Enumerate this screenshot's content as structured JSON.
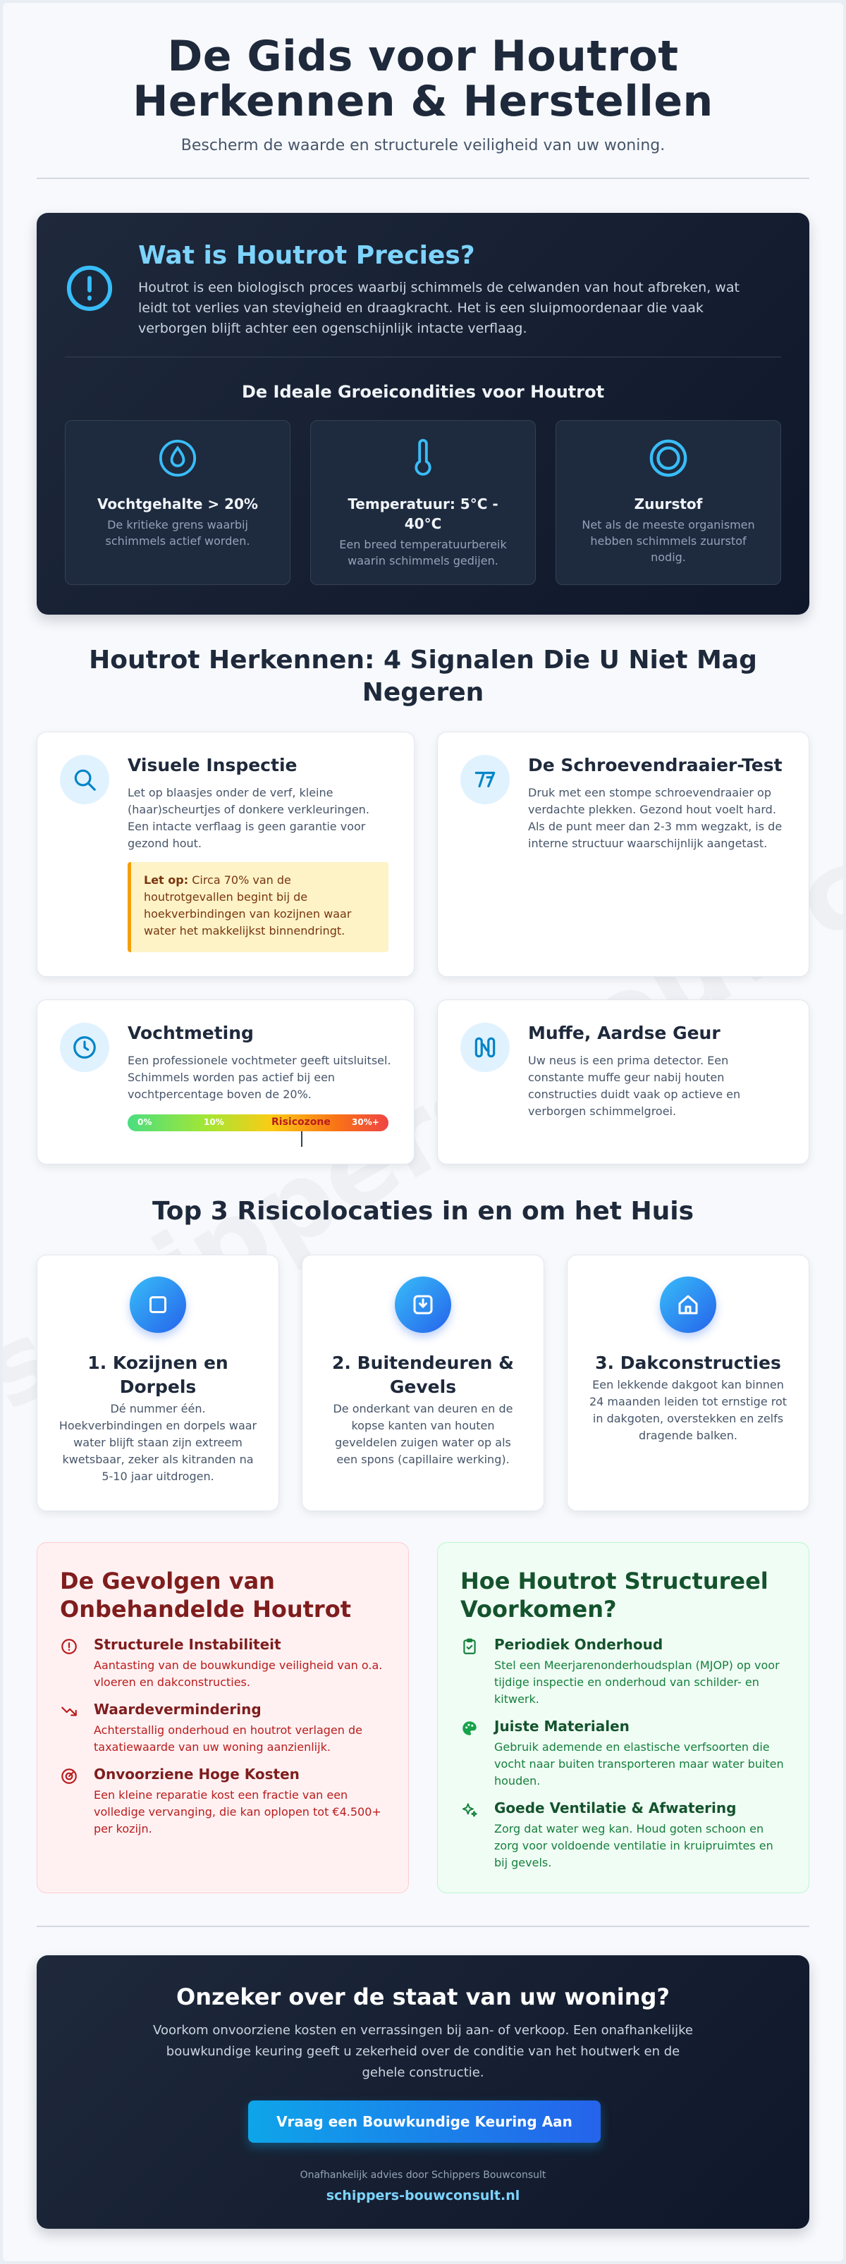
{
  "header": {
    "title_line1": "De Gids voor Houtrot",
    "title_line2": "Herkennen & Herstellen",
    "subtitle": "Bescherm de waarde en structurele veiligheid van uw woning."
  },
  "watermark": "schippers-bouwconsult",
  "intro": {
    "title": "Wat is Houtrot Precies?",
    "description": "Houtrot is een biologisch proces waarbij schimmels de celwanden van hout afbreken, wat leidt tot verlies van stevigheid en draagkracht. Het is een sluipmoordenaar die vaak verborgen blijft achter een ogenschijnlijk intacte verflaag.",
    "conditions_title": "De Ideale Groeicondities voor Houtrot",
    "conditions": [
      {
        "title": "Vochtgehalte > 20%",
        "desc": "De kritieke grens waarbij schimmels actief worden.",
        "icon": "water-drop-icon"
      },
      {
        "title": "Temperatuur: 5°C - 40°C",
        "desc": "Een breed temperatuurbereik waarin schimmels gedijen.",
        "icon": "thermometer-icon"
      },
      {
        "title": "Zuurstof",
        "desc": "Net als de meeste organismen hebben schimmels zuurstof nodig.",
        "icon": "oxygen-ring-icon"
      }
    ]
  },
  "signals": {
    "title_line1": "Houtrot Herkennen: 4 Signalen Die U Niet Mag",
    "title_line2": "Negeren",
    "items": [
      {
        "title": "Visuele Inspectie",
        "text": "Let op blaasjes onder de verf, kleine (haar)scheurtjes of donkere verkleuringen. Een intacte verflaag is geen garantie voor gezond hout.",
        "icon": "search-icon"
      },
      {
        "title": "De Schroevendraaier-Test",
        "text": "Druk met een stompe schroevendraaier op verdachte plekken. Gezond hout voelt hard. Als de punt meer dan 2-3 mm wegzakt, is de interne structuur waarschijnlijk aangetast.",
        "icon": "screwdriver-icon"
      },
      {
        "title": "Vochtmeting",
        "text": "Een professionele vochtmeter geeft uitsluitsel. Schimmels worden pas actief bij een vochtpercentage boven de 20%.",
        "icon": "clock-icon"
      },
      {
        "title": "Muffe, Aardse Geur",
        "text": "Uw neus is een prima detector. Een constante muffe geur nabij houten constructies duidt vaak op actieve en verborgen schimmelgroei.",
        "icon": "nose-icon"
      }
    ],
    "note_label": "Let op:",
    "note_text": " Circa 70% van de houtrotgevallen begint bij de hoekverbindingen van kozijnen waar water het makkelijkst binnendringt.",
    "meter": {
      "label_0": "0%",
      "label_10": "10%",
      "zone": "Risicozone",
      "label_30": "30%+",
      "indicator_value": 20
    }
  },
  "risks": {
    "title": "Top 3 Risicolocaties in en om het Huis",
    "items": [
      {
        "title": "1. Kozijnen en Dorpels",
        "text": "Dé nummer één. Hoekverbindingen en dorpels waar water blijft staan zijn extreem kwetsbaar, zeker als kitranden na 5-10 jaar uitdrogen.",
        "icon": "window-frame-icon"
      },
      {
        "title": "2. Buitendeuren & Gevels",
        "text": "De onderkant van deuren en de kopse kanten van houten geveldelen zuigen water op als een spons (capillaire werking).",
        "icon": "door-download-icon"
      },
      {
        "title": "3. Dakconstructies",
        "text": "Een lekkende dakgoot kan binnen 24 maanden leiden tot ernstige rot in dakgoten, overstekken en zelfs dragende balken.",
        "icon": "house-icon"
      }
    ]
  },
  "consequences": {
    "title_line1": "De Gevolgen van",
    "title_line2": "Onbehandelde Houtrot",
    "items": [
      {
        "title": "Structurele Instabiliteit",
        "text": "Aantasting van de bouwkundige veiligheid van o.a. vloeren en dakconstructies.",
        "icon": "alert-circle-icon"
      },
      {
        "title": "Waardevermindering",
        "text": "Achterstallig onderhoud en houtrot verlagen de taxatiewaarde van uw woning aanzienlijk.",
        "icon": "trending-down-icon"
      },
      {
        "title": "Onvoorziene Hoge Kosten",
        "text": "Een kleine reparatie kost een fractie van een volledige vervanging, die kan oplopen tot €4.500+ per kozijn.",
        "icon": "gauge-icon"
      }
    ]
  },
  "prevention": {
    "title_line1": "Hoe Houtrot Structureel",
    "title_line2": "Voorkomen?",
    "items": [
      {
        "title": "Periodiek Onderhoud",
        "text": "Stel een Meerjarenonderhoudsplan (MJOP) op voor tijdige inspectie en onderhoud van schilder- en kitwerk.",
        "icon": "clipboard-check-icon"
      },
      {
        "title": "Juiste Materialen",
        "text": "Gebruik ademende en elastische verfsoorten die vocht naar buiten transporteren maar water buiten houden.",
        "icon": "paint-palette-icon"
      },
      {
        "title": "Goede Ventilatie & Afwatering",
        "text": "Zorg dat water weg kan. Houd goten schoon en zorg voor voldoende ventilatie in kruipruimtes en bij gevels.",
        "icon": "sparkles-icon"
      }
    ]
  },
  "cta": {
    "title": "Onzeker over de staat van uw woning?",
    "text": "Voorkom onvoorziene kosten en verrassingen bij aan- of verkoop. Een onafhankelijke bouwkundige keuring geeft u zekerheid over de conditie van het houtwerk en de gehele constructie.",
    "button": "Vraag een Bouwkundige Keuring Aan",
    "small": "Onafhankelijk advies door Schippers Bouwconsult",
    "link": "schippers-bouwconsult.nl"
  },
  "colors": {
    "accent_blue": "#0ea5e9",
    "dark_navy": "#1e293b",
    "danger_red": "#b91c1c",
    "success_green": "#15803d"
  }
}
